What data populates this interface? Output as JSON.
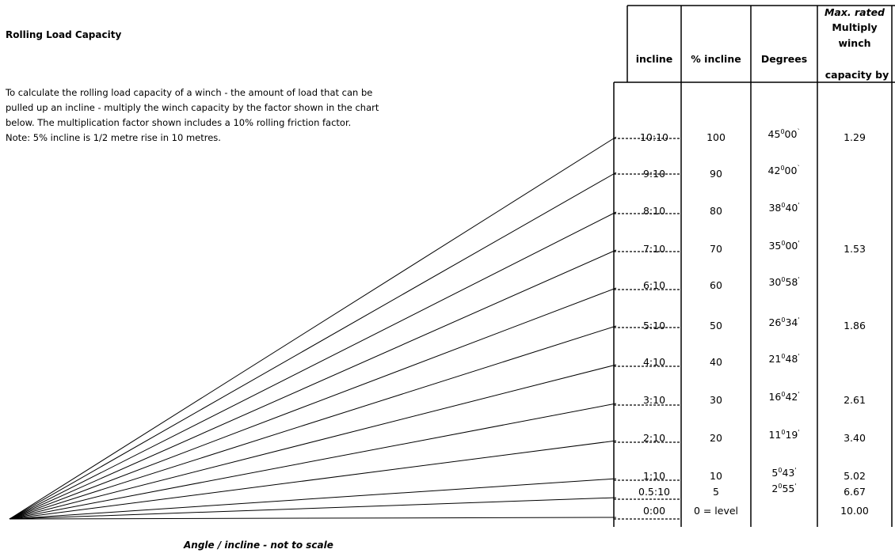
{
  "title": "Rolling Load Capacity",
  "intro_lines": [
    "To calculate the rolling load capacity of a winch - the amount of load that can be",
    "pulled up an incline - multiply the winch capacity by the factor shown in the chart",
    "below. The multiplication factor shown includes a 10% rolling friction factor.",
    "Note: 5% incline is 1/2 metre rise in 10 metres."
  ],
  "headers": {
    "incline": "incline",
    "percent": "% incline",
    "degrees": "Degrees",
    "max_rated": "Max. rated",
    "multiply": "Multiply",
    "winch": "winch",
    "capacity_by": "capacity by"
  },
  "caption": "Angle / incline - not to scale",
  "rows": [
    {
      "incline": "10:10",
      "percent": "100",
      "deg_a": "45",
      "deg_sup": "0",
      "deg_b": "00",
      "deg_mark": "`",
      "factor": "1.29"
    },
    {
      "incline": "9:10",
      "percent": "90",
      "deg_a": "42",
      "deg_sup": "0",
      "deg_b": "00",
      "deg_mark": "`",
      "factor": ""
    },
    {
      "incline": "8:10",
      "percent": "80",
      "deg_a": "38",
      "deg_sup": "0",
      "deg_b": "40",
      "deg_mark": "'",
      "factor": ""
    },
    {
      "incline": "7:10",
      "percent": "70",
      "deg_a": "35",
      "deg_sup": "0",
      "deg_b": "00",
      "deg_mark": "'",
      "factor": "1.53"
    },
    {
      "incline": "6:10",
      "percent": "60",
      "deg_a": "30",
      "deg_sup": "0",
      "deg_b": "58",
      "deg_mark": "'",
      "factor": ""
    },
    {
      "incline": "5:10",
      "percent": "50",
      "deg_a": "26",
      "deg_sup": "0",
      "deg_b": "34",
      "deg_mark": "'",
      "factor": "1.86"
    },
    {
      "incline": "4:10",
      "percent": "40",
      "deg_a": "21",
      "deg_sup": "0",
      "deg_b": "48",
      "deg_mark": "'",
      "factor": ""
    },
    {
      "incline": "3:10",
      "percent": "30",
      "deg_a": "16",
      "deg_sup": "0",
      "deg_b": "42",
      "deg_mark": "'",
      "factor": "2.61"
    },
    {
      "incline": "2:10",
      "percent": "20",
      "deg_a": "11",
      "deg_sup": "0",
      "deg_b": "19",
      "deg_mark": "'",
      "factor": "3.40"
    },
    {
      "incline": "1:10",
      "percent": "10",
      "deg_a": "5",
      "deg_sup": "0",
      "deg_b": "43",
      "deg_mark": "'",
      "factor": "5.02"
    },
    {
      "incline": "0.5:10",
      "percent": "5",
      "deg_a": "2",
      "deg_sup": "0",
      "deg_b": "55",
      "deg_mark": "'",
      "factor": "6.67"
    },
    {
      "incline": "0:00",
      "percent": "0 = level",
      "deg_a": "",
      "deg_sup": "",
      "deg_b": "",
      "deg_mark": "",
      "factor": "10.00"
    }
  ]
}
